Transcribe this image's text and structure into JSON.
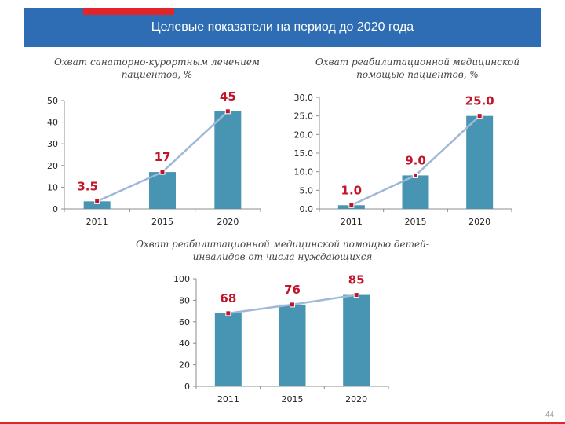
{
  "header": {
    "title": "Целевые показатели на период до 2020 года"
  },
  "page_number": "44",
  "colors": {
    "header": "#2e6db4",
    "accent": "#e2252b",
    "bar": "#4795b3",
    "line": "#9fb8d8",
    "marker": "#c0152b"
  },
  "chart_data": [
    {
      "type": "bar",
      "title": "Охват санаторно-курортным лечением пациентов, %",
      "title_lines": [
        "Охват санаторно-курортным лечением",
        "пациентов, %"
      ],
      "categories": [
        "2011",
        "2015",
        "2020"
      ],
      "values": [
        3.5,
        17,
        45
      ],
      "value_labels": [
        "3.5",
        "17",
        "45"
      ],
      "ylim": [
        0,
        50
      ],
      "yticks": [
        "0",
        "10",
        "20",
        "30",
        "40",
        "50"
      ],
      "grid": false,
      "trend_line": true
    },
    {
      "type": "bar",
      "title": "Охват реабилитационной медицинской помощью пациентов, %",
      "title_lines": [
        "Охват реабилитационной медицинской",
        "помощью пациентов, %"
      ],
      "categories": [
        "2011",
        "2015",
        "2020"
      ],
      "values": [
        1.0,
        9.0,
        25.0
      ],
      "value_labels": [
        "1.0",
        "9.0",
        "25.0"
      ],
      "ylim": [
        0,
        30
      ],
      "yticks": [
        "0.0",
        "5.0",
        "10.0",
        "15.0",
        "20.0",
        "25.0",
        "30.0"
      ],
      "grid": false,
      "trend_line": true
    },
    {
      "type": "bar",
      "title": "Охват реабилитационной медицинской помощью детей-инвалидов от числа нуждающихся",
      "title_lines": [
        "Охват реабилитационной медицинской помощью детей-",
        "инвалидов от числа нуждающихся"
      ],
      "categories": [
        "2011",
        "2015",
        "2020"
      ],
      "values": [
        68,
        76,
        85
      ],
      "value_labels": [
        "68",
        "76",
        "85"
      ],
      "ylim": [
        0,
        100
      ],
      "yticks": [
        "0",
        "20",
        "40",
        "60",
        "80",
        "100"
      ],
      "grid": false,
      "trend_line": true
    }
  ]
}
